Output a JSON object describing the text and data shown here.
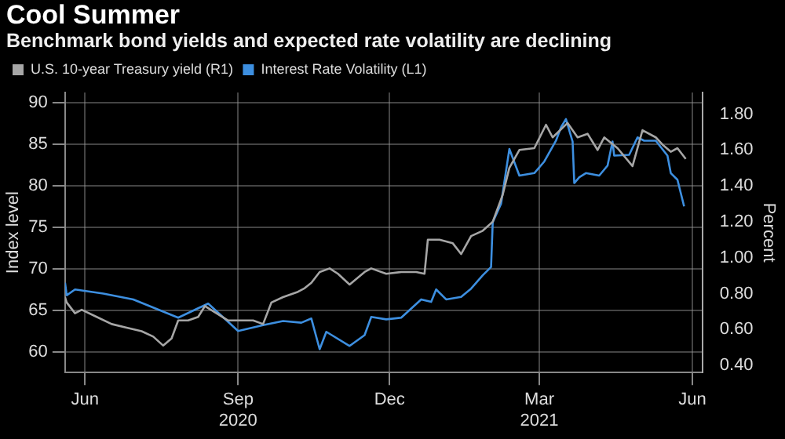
{
  "chart_data": {
    "type": "line",
    "title": "Cool Summer",
    "subtitle": "Benchmark bond yields and expected rate volatility are declining",
    "ylabel": "Index level",
    "y2label": "Percent",
    "xlim": [
      "2020-05-20",
      "2021-06-07"
    ],
    "xticks": [
      {
        "value": "2020-06-01",
        "label": "Jun"
      },
      {
        "value": "2020-09-01",
        "label": "Sep\n2020"
      },
      {
        "value": "2020-12-01",
        "label": "Dec"
      },
      {
        "value": "2021-03-01",
        "label": "Mar\n2021"
      },
      {
        "value": "2021-06-01",
        "label": "Jun"
      }
    ],
    "ylim": [
      57.5,
      91.2
    ],
    "yticks": [
      60,
      65,
      70,
      75,
      80,
      85,
      90
    ],
    "y2lim": [
      0.36,
      1.92
    ],
    "y2ticks": [
      {
        "value": 0.4,
        "label": "0.40"
      },
      {
        "value": 0.6,
        "label": "0.60"
      },
      {
        "value": 0.8,
        "label": "0.80"
      },
      {
        "value": 1.0,
        "label": "1.00"
      },
      {
        "value": 1.2,
        "label": "1.20"
      },
      {
        "value": 1.4,
        "label": "1.40"
      },
      {
        "value": 1.6,
        "label": "1.60"
      },
      {
        "value": 1.8,
        "label": "1.80"
      }
    ],
    "grid": true,
    "legend": "top left",
    "marker": "none",
    "line_style": "solid",
    "series": [
      {
        "name": "U.S. 10-year Treasury yield (R1)",
        "color": "#a6a6a6",
        "axis": "y2",
        "x": [
          "2020-05-20",
          "2020-05-21",
          "2020-05-26",
          "2020-05-30",
          "2020-06-08",
          "2020-06-17",
          "2020-06-26",
          "2020-07-05",
          "2020-07-12",
          "2020-07-18",
          "2020-07-23",
          "2020-07-27",
          "2020-08-02",
          "2020-08-08",
          "2020-08-12",
          "2020-08-19",
          "2020-08-26",
          "2020-09-01",
          "2020-09-10",
          "2020-09-16",
          "2020-09-21",
          "2020-09-28",
          "2020-10-07",
          "2020-10-11",
          "2020-10-15",
          "2020-10-20",
          "2020-10-26",
          "2020-10-31",
          "2020-11-07",
          "2020-11-16",
          "2020-11-20",
          "2020-11-29",
          "2020-12-08",
          "2020-12-17",
          "2020-12-22",
          "2020-12-24",
          "2020-12-31",
          "2021-01-08",
          "2021-01-13",
          "2021-01-19",
          "2021-01-26",
          "2021-02-01",
          "2021-02-07",
          "2021-02-11",
          "2021-02-17",
          "2021-02-26",
          "2021-03-05",
          "2021-03-09",
          "2021-03-18",
          "2021-03-24",
          "2021-03-30",
          "2021-04-05",
          "2021-04-09",
          "2021-04-17",
          "2021-04-26",
          "2021-05-02",
          "2021-05-10",
          "2021-05-14",
          "2021-05-19",
          "2021-05-23",
          "2021-05-28"
        ],
        "values": [
          0.78,
          0.75,
          0.69,
          0.71,
          0.67,
          0.63,
          0.61,
          0.59,
          0.56,
          0.51,
          0.55,
          0.65,
          0.65,
          0.67,
          0.73,
          0.69,
          0.65,
          0.65,
          0.65,
          0.63,
          0.75,
          0.78,
          0.81,
          0.83,
          0.86,
          0.92,
          0.94,
          0.91,
          0.85,
          0.92,
          0.94,
          0.91,
          0.92,
          0.92,
          0.91,
          1.1,
          1.1,
          1.08,
          1.02,
          1.12,
          1.15,
          1.2,
          1.35,
          1.5,
          1.6,
          1.61,
          1.74,
          1.67,
          1.75,
          1.67,
          1.69,
          1.6,
          1.67,
          1.61,
          1.51,
          1.71,
          1.67,
          1.63,
          1.59,
          1.61,
          1.55
        ]
      },
      {
        "name": "Interest Rate Volatility (L1)",
        "color": "#3d8fe0",
        "axis": "y",
        "x": [
          "2020-05-20",
          "2020-05-21",
          "2020-05-26",
          "2020-06-12",
          "2020-06-30",
          "2020-07-27",
          "2020-08-14",
          "2020-09-01",
          "2020-09-16",
          "2020-09-28",
          "2020-10-09",
          "2020-10-15",
          "2020-10-20",
          "2020-10-24",
          "2020-11-07",
          "2020-11-16",
          "2020-11-20",
          "2020-11-29",
          "2020-12-08",
          "2020-12-20",
          "2020-12-26",
          "2020-12-29",
          "2021-01-04",
          "2021-01-13",
          "2021-01-19",
          "2021-01-26",
          "2021-01-31",
          "2021-02-01",
          "2021-02-06",
          "2021-02-11",
          "2021-02-17",
          "2021-02-26",
          "2021-03-04",
          "2021-03-11",
          "2021-03-14",
          "2021-03-17",
          "2021-03-21",
          "2021-03-22",
          "2021-03-25",
          "2021-03-29",
          "2021-04-06",
          "2021-04-11",
          "2021-04-14",
          "2021-04-15",
          "2021-04-24",
          "2021-04-29",
          "2021-05-03",
          "2021-05-10",
          "2021-05-17",
          "2021-05-19",
          "2021-05-23",
          "2021-05-27"
        ],
        "values": [
          68.3,
          66.8,
          67.5,
          67,
          66.3,
          64.1,
          65.8,
          62.5,
          63.2,
          63.7,
          63.5,
          64,
          60.3,
          62.4,
          60.7,
          62,
          64.2,
          63.9,
          64.1,
          66.3,
          66,
          67.5,
          66.3,
          66.6,
          67.6,
          69.2,
          70.2,
          75.6,
          77.8,
          84.4,
          81.2,
          81.5,
          82.9,
          85.4,
          87,
          88,
          85.3,
          80.3,
          81,
          81.5,
          81.2,
          82.4,
          85.3,
          83.6,
          83.7,
          85.8,
          85.4,
          85.4,
          83.6,
          81.5,
          80.7,
          77.5
        ]
      }
    ]
  }
}
